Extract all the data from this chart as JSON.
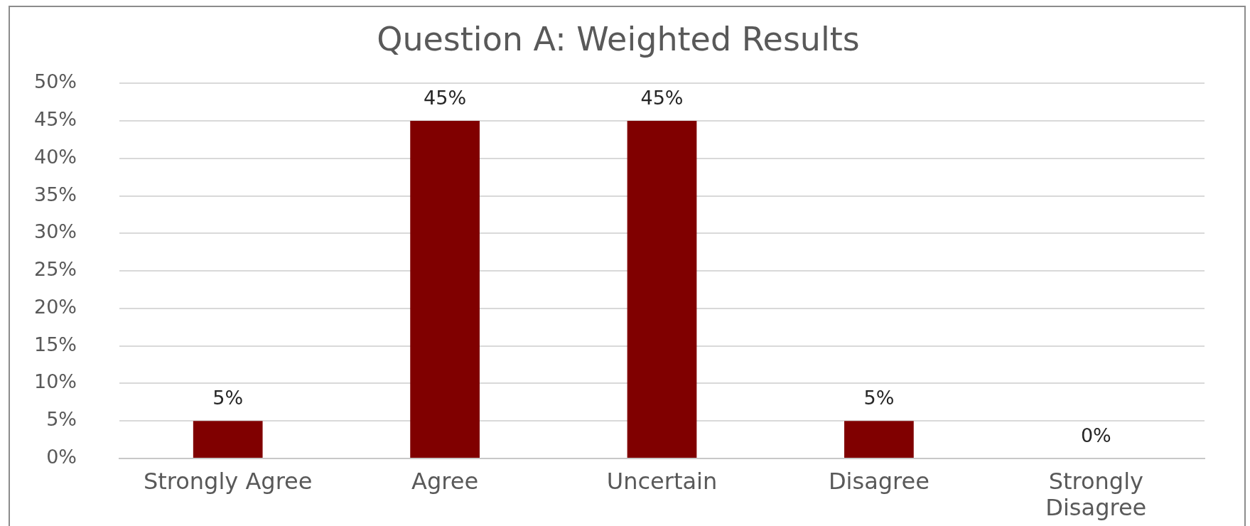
{
  "chart_data": {
    "type": "bar",
    "title": "Question A: Weighted Results",
    "categories": [
      "Strongly Agree",
      "Agree",
      "Uncertain",
      "Disagree",
      "Strongly Disagree"
    ],
    "values": [
      5,
      45,
      45,
      5,
      0
    ],
    "value_labels": [
      "5%",
      "45%",
      "45%",
      "5%",
      "0%"
    ],
    "color": "#800000",
    "ylim": [
      0,
      50
    ],
    "yticks": [
      {
        "value": 0,
        "label": "0%"
      },
      {
        "value": 5,
        "label": "5%"
      },
      {
        "value": 10,
        "label": "10%"
      },
      {
        "value": 15,
        "label": "15%"
      },
      {
        "value": 20,
        "label": "20%"
      },
      {
        "value": 25,
        "label": "25%"
      },
      {
        "value": 30,
        "label": "30%"
      },
      {
        "value": 35,
        "label": "35%"
      },
      {
        "value": 40,
        "label": "40%"
      },
      {
        "value": 45,
        "label": "45%"
      },
      {
        "value": 50,
        "label": "50%"
      }
    ],
    "grid": "y"
  }
}
